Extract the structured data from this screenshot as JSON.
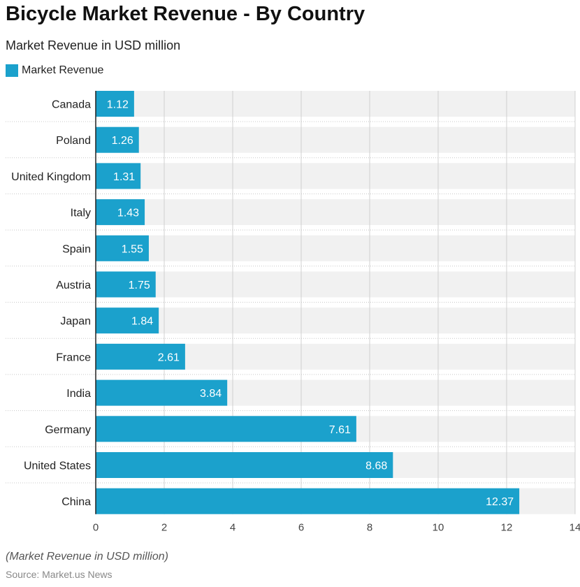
{
  "chart_data": {
    "type": "bar",
    "orientation": "horizontal",
    "title": "Bicycle Market Revenue - By Country",
    "subtitle": "Market Revenue in USD million",
    "categories": [
      "Canada",
      "Poland",
      "United Kingdom",
      "Italy",
      "Spain",
      "Austria",
      "Japan",
      "France",
      "India",
      "Germany",
      "United States",
      "China"
    ],
    "series": [
      {
        "name": "Market Revenue",
        "values": [
          1.12,
          1.26,
          1.31,
          1.43,
          1.55,
          1.75,
          1.84,
          2.61,
          3.84,
          7.61,
          8.68,
          12.37
        ],
        "color": "#1ba1cc"
      }
    ],
    "xlim": [
      0,
      14
    ],
    "xticks": [
      "0",
      "2",
      "4",
      "6",
      "8",
      "10",
      "12",
      "14"
    ],
    "grid": true,
    "legend": "top-left",
    "note": "(Market Revenue in USD million)",
    "source": "Source: Market.us News"
  }
}
